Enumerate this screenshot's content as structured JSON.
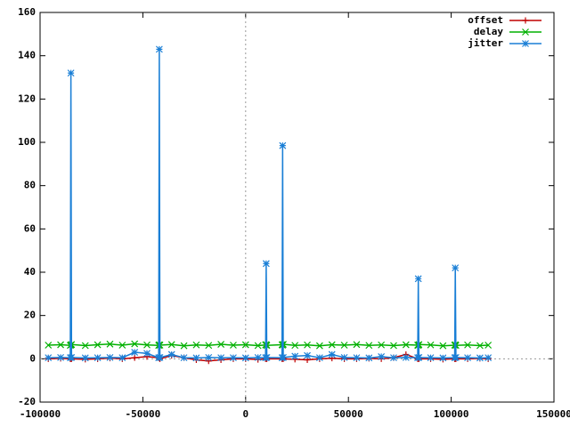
{
  "chart_data": {
    "type": "line",
    "x": [
      -96000,
      -90000,
      -85300,
      -85000,
      -84700,
      -78000,
      -72000,
      -66000,
      -60000,
      -54000,
      -48000,
      -42300,
      -42000,
      -41700,
      -36000,
      -30000,
      -24000,
      -18000,
      -12000,
      -6000,
      0,
      6000,
      9700,
      10000,
      10300,
      17700,
      18000,
      18300,
      24000,
      30000,
      36000,
      42000,
      48000,
      54000,
      60000,
      66000,
      72000,
      78000,
      83700,
      84000,
      84300,
      90000,
      96000,
      101700,
      102000,
      102300,
      108000,
      114000,
      118000
    ],
    "series": [
      {
        "name": "offset",
        "color": "#c00000",
        "marker": "plus",
        "values": [
          0,
          0.2,
          0,
          0.1,
          0,
          -0.2,
          0,
          0.3,
          0,
          0.5,
          1,
          0.5,
          0.3,
          0,
          1.5,
          0.5,
          -0.5,
          -1,
          -0.5,
          0,
          0,
          -0.3,
          0,
          0.2,
          0,
          0,
          0.3,
          0,
          -0.2,
          -0.5,
          0,
          0.3,
          0,
          0,
          0.2,
          0,
          0.5,
          2,
          0,
          0.2,
          0,
          0,
          -0.2,
          0,
          0.1,
          0,
          0,
          0.2,
          0
        ]
      },
      {
        "name": "delay",
        "color": "#00b000",
        "marker": "cross",
        "values": [
          6.3,
          6.5,
          6.2,
          6.4,
          6.6,
          6.1,
          6.5,
          6.8,
          6.3,
          6.9,
          6.4,
          6.2,
          6.5,
          6.3,
          6.6,
          6.0,
          6.4,
          6.2,
          6.7,
          6.3,
          6.5,
          6.1,
          6.4,
          6.6,
          6.2,
          6.5,
          6.3,
          6.7,
          6.2,
          6.4,
          6.0,
          6.5,
          6.3,
          6.6,
          6.2,
          6.4,
          6.1,
          6.5,
          6.3,
          6.2,
          6.6,
          6.4,
          6.0,
          6.3,
          6.5,
          6.2,
          6.4,
          6.1,
          6.3
        ]
      },
      {
        "name": "jitter",
        "color": "#1a7fd6",
        "marker": "star",
        "values": [
          0.5,
          0.6,
          0.5,
          132,
          0.6,
          0.4,
          0.5,
          0.6,
          0.5,
          3,
          2.5,
          0.5,
          143,
          0.6,
          2,
          0.5,
          0.4,
          0.6,
          0.5,
          0.5,
          0.4,
          0.6,
          0.5,
          44,
          0.6,
          0.5,
          98.5,
          0.6,
          1.2,
          1.5,
          0.5,
          2,
          0.6,
          0.5,
          0.4,
          1,
          0.5,
          0.6,
          0.5,
          37,
          0.6,
          0.5,
          0.4,
          0.5,
          42,
          0.6,
          0.5,
          0.4,
          0.5
        ]
      }
    ],
    "xlim": [
      -100000,
      150000
    ],
    "xticks": [
      -100000,
      -50000,
      0,
      50000,
      100000,
      150000
    ],
    "ylim": [
      -20,
      160
    ],
    "yticks": [
      -20,
      0,
      20,
      40,
      60,
      80,
      100,
      120,
      140,
      160
    ],
    "legend": "upper-right",
    "grid": false
  }
}
